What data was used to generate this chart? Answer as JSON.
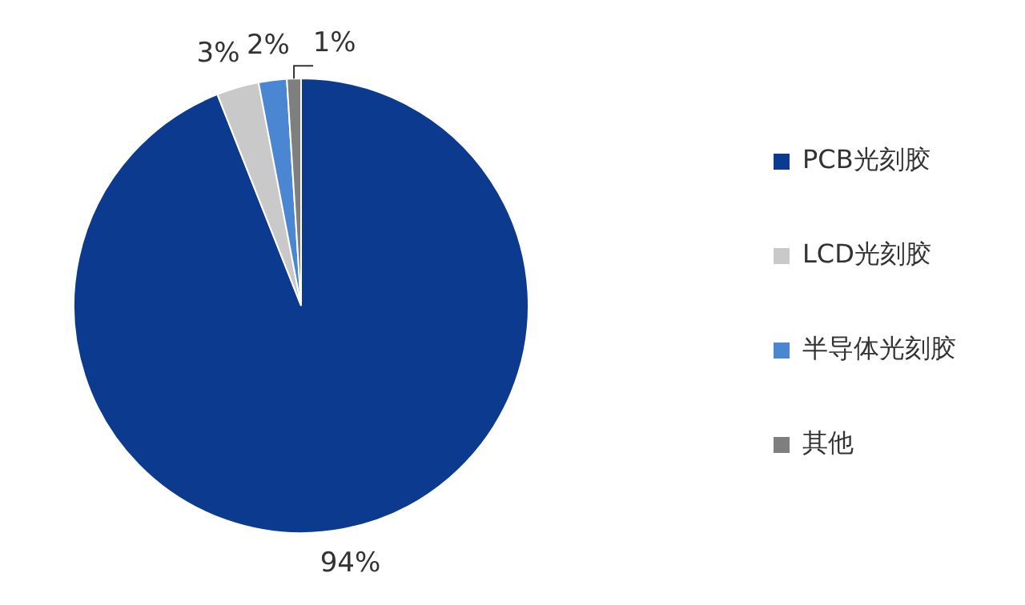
{
  "chart_data": {
    "type": "pie",
    "categories": [
      "PCB光刻胶",
      "LCD光刻胶",
      "半导体光刻胶",
      "其他"
    ],
    "values": [
      94,
      3,
      2,
      1
    ],
    "colors": [
      "#0b3a8e",
      "#c9c9c9",
      "#4a86d1",
      "#7f7f7f"
    ],
    "value_labels": [
      "94%",
      "3%",
      "2%",
      "1%"
    ],
    "legend": "right"
  }
}
